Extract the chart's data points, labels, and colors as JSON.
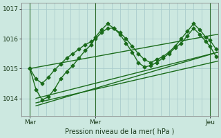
{
  "background_color": "#cce8e0",
  "plot_bg_color": "#cce8e0",
  "line_color": "#1a6b1a",
  "grid_color": "#aacccc",
  "title": "Pression niveau de la mer( hPa )",
  "ylim": [
    1013.4,
    1017.2
  ],
  "xlim": [
    0,
    48
  ],
  "xtick_positions": [
    2,
    18,
    46
  ],
  "xtick_labels": [
    "Mar",
    "Mer",
    "Jeu"
  ],
  "ytick_positions": [
    1014,
    1015,
    1016,
    1017
  ],
  "ytick_labels": [
    "1014",
    "1015",
    "1016",
    "1017"
  ],
  "vline_positions": [
    2,
    18,
    46
  ],
  "series_wavy1": {
    "x": [
      2,
      3.5,
      5,
      6.5,
      8,
      9.5,
      11,
      12.5,
      14,
      15.5,
      17,
      18,
      19.5,
      21,
      22.5,
      24,
      25.5,
      27,
      28.5,
      30,
      31.5,
      33,
      34.5,
      36,
      37.5,
      39,
      40.5,
      42,
      43.5,
      45,
      46,
      47.5
    ],
    "y": [
      1015.0,
      1014.65,
      1014.5,
      1014.7,
      1014.95,
      1015.15,
      1015.35,
      1015.5,
      1015.65,
      1015.8,
      1015.9,
      1016.0,
      1016.2,
      1016.35,
      1016.35,
      1016.2,
      1016.0,
      1015.75,
      1015.5,
      1015.3,
      1015.2,
      1015.3,
      1015.4,
      1015.55,
      1015.75,
      1016.0,
      1016.25,
      1016.5,
      1016.3,
      1016.05,
      1015.95,
      1015.65
    ],
    "marker": "D",
    "markersize": 2.5,
    "linewidth": 1.0
  },
  "series_wavy2": {
    "x": [
      2,
      3.5,
      5,
      6.5,
      8,
      9.5,
      11,
      12.5,
      14,
      15.5,
      17,
      18,
      19.5,
      21,
      22.5,
      24,
      25.5,
      27,
      28.5,
      30,
      31.5,
      33,
      34.5,
      36,
      37.5,
      39,
      40.5,
      42,
      43.5,
      45,
      46,
      47.5
    ],
    "y": [
      1015.0,
      1014.3,
      1013.95,
      1014.05,
      1014.3,
      1014.65,
      1014.9,
      1015.1,
      1015.35,
      1015.6,
      1015.8,
      1016.05,
      1016.3,
      1016.5,
      1016.35,
      1016.15,
      1015.85,
      1015.55,
      1015.2,
      1015.05,
      1015.1,
      1015.2,
      1015.35,
      1015.5,
      1015.7,
      1015.85,
      1016.1,
      1016.35,
      1016.15,
      1015.9,
      1015.75,
      1015.4
    ],
    "marker": "D",
    "markersize": 2.5,
    "linewidth": 1.0
  },
  "straight_lines": [
    {
      "x": [
        2,
        48
      ],
      "y": [
        1015.0,
        1016.15
      ]
    },
    {
      "x": [
        3.5,
        48
      ],
      "y": [
        1014.0,
        1015.55
      ]
    },
    {
      "x": [
        3.5,
        48
      ],
      "y": [
        1013.85,
        1015.25
      ]
    },
    {
      "x": [
        3.5,
        48
      ],
      "y": [
        1013.75,
        1015.55
      ]
    }
  ]
}
